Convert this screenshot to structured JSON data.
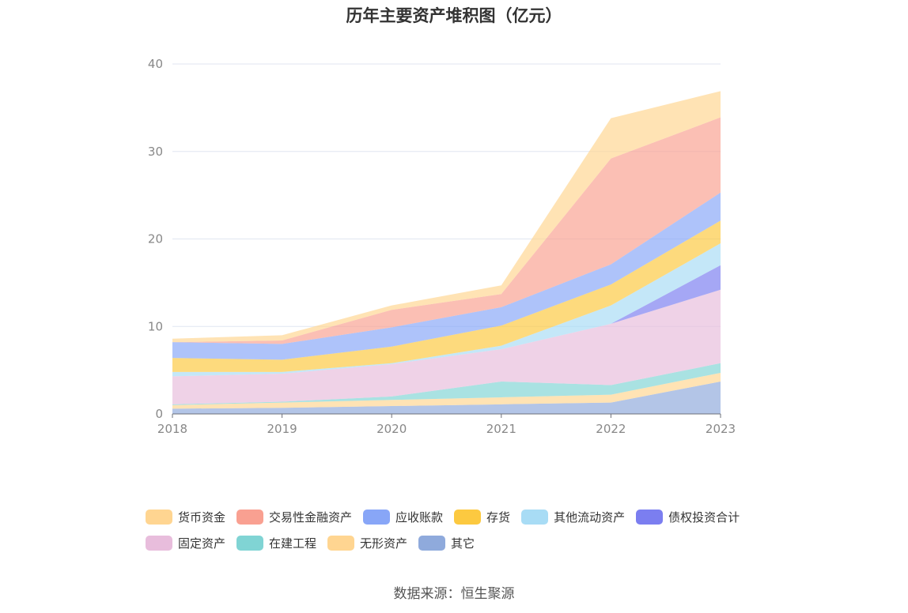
{
  "source_text": "数据来源：恒生聚源",
  "chart_data": {
    "type": "area",
    "stacked": true,
    "title": "历年主要资产堆积图（亿元）",
    "xlabel": "",
    "ylabel": "",
    "categories": [
      "2018",
      "2019",
      "2020",
      "2021",
      "2022",
      "2023"
    ],
    "ylim": [
      0,
      40
    ],
    "yticks": [
      0,
      10,
      20,
      30,
      40
    ],
    "grid": true,
    "legend_position": "bottom",
    "legend_rows": [
      [
        "货币资金",
        "交易性金融资产",
        "应收账款",
        "存货",
        "其他流动资产",
        "债权投资合计"
      ],
      [
        "固定资产",
        "在建工程",
        "无形资产",
        "其它"
      ]
    ],
    "series": [
      {
        "name": "其它",
        "color": "#8faadc",
        "values": [
          0.6,
          0.7,
          0.9,
          1.1,
          1.3,
          3.7
        ]
      },
      {
        "name": "无形资产",
        "color": "#ffd591",
        "values": [
          0.4,
          0.6,
          0.7,
          0.8,
          0.9,
          1.0
        ]
      },
      {
        "name": "在建工程",
        "color": "#80d4d4",
        "values": [
          0.1,
          0.1,
          0.4,
          1.8,
          1.1,
          1.1
        ]
      },
      {
        "name": "固定资产",
        "color": "#e8bddc",
        "values": [
          3.2,
          3.2,
          3.7,
          3.7,
          7.0,
          8.4
        ]
      },
      {
        "name": "债权投资合计",
        "color": "#7b7ef0",
        "values": [
          0,
          0,
          0,
          0,
          0,
          2.8
        ]
      },
      {
        "name": "其他流动资产",
        "color": "#a8dcf5",
        "values": [
          0.5,
          0.2,
          0.1,
          0.4,
          2.1,
          2.5
        ]
      },
      {
        "name": "存货",
        "color": "#fcc940",
        "values": [
          1.6,
          1.4,
          1.9,
          2.3,
          2.4,
          2.6
        ]
      },
      {
        "name": "应收账款",
        "color": "#88a6f7",
        "values": [
          1.8,
          1.8,
          2.2,
          2.1,
          2.3,
          3.2
        ]
      },
      {
        "name": "交易性金融资产",
        "color": "#f9a091",
        "values": [
          0,
          0.4,
          2.0,
          1.5,
          12.1,
          8.6
        ]
      },
      {
        "name": "货币资金",
        "color": "#ffd591",
        "values": [
          0.4,
          0.6,
          0.5,
          1.0,
          4.6,
          3.0
        ]
      }
    ]
  }
}
